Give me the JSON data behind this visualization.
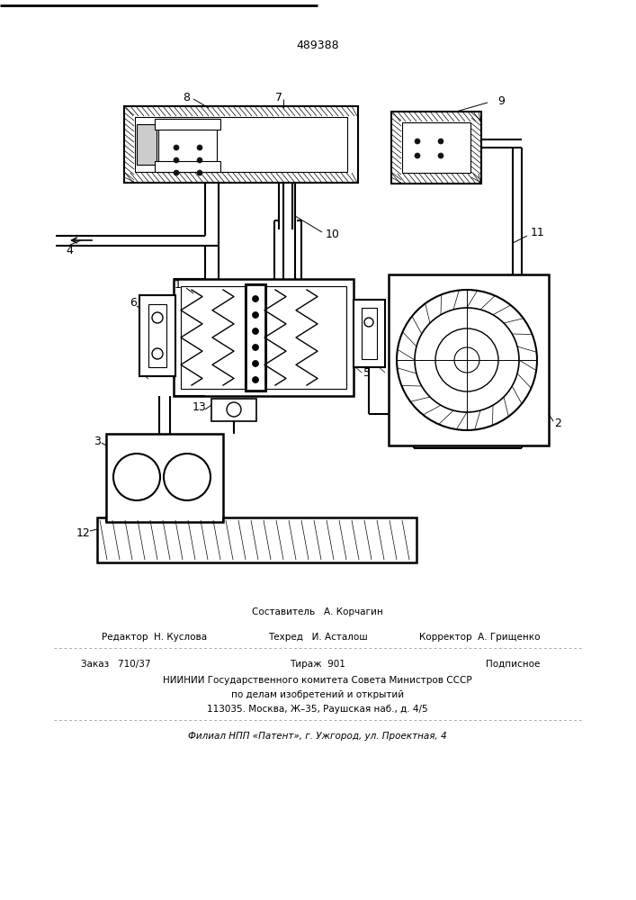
{
  "patent_number": "489388",
  "bg_color": "#ffffff",
  "fig_width": 7.07,
  "fig_height": 10.0,
  "dpi": 100,
  "footer": {
    "line1": "Составитель   А. Корчагин",
    "editor": "Редактор  Н. Куслова",
    "techred": "Техред   И. Асталош",
    "corrector": "Корректор  А. Грищенко",
    "order": "Заказ   710/37",
    "tirazh": "Тираж  901",
    "podpisnoe": "Подписное",
    "niinii": "НИИНИИ Государственного комитета Совета Министров СССР",
    "dela": "по делам изобретений и открытий",
    "addr": "113035. Москва, Ж–35, Раушская наб., д. 4/5",
    "filial": "Филиал НПП «Патент», г. Ужгород, ул. Проектная, 4"
  }
}
